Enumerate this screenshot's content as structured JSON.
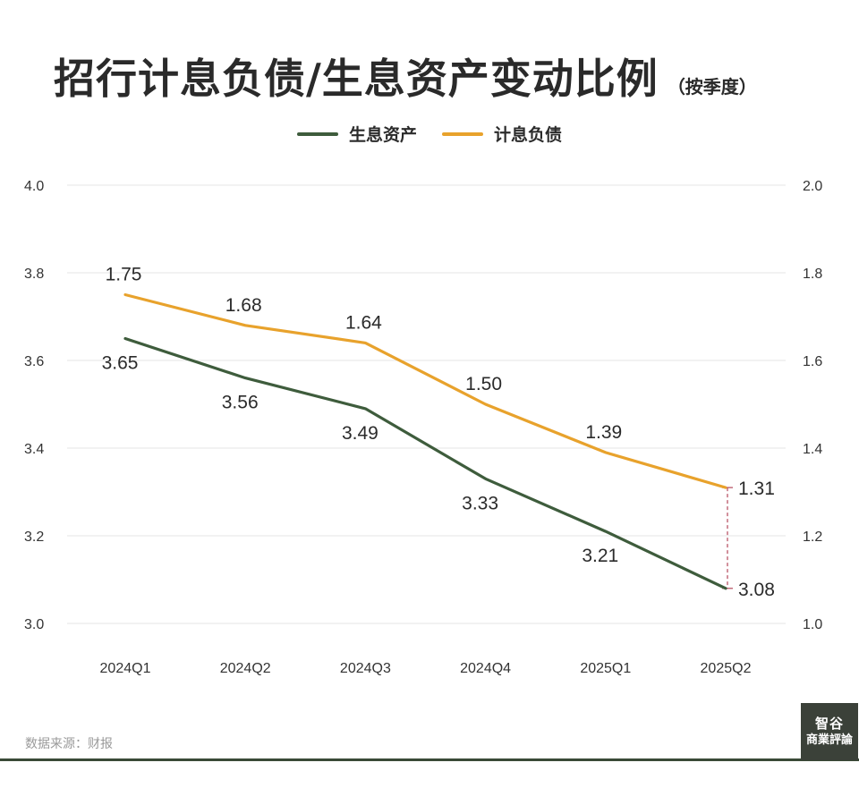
{
  "header": {
    "title": "招行计息负债/生息资产变动比例",
    "subtitle": "（按季度）"
  },
  "source": "数据来源：财报",
  "logo_text": [
    "智谷",
    "商業評論"
  ],
  "colors": {
    "interest_earning_assets": "#3e5c3c",
    "interest_bearing_liabilities": "#e8a22c",
    "grid": "#e6e6e6",
    "gap_marker": "#b3475a"
  },
  "chart_data": {
    "type": "line",
    "categories": [
      "2024Q1",
      "2024Q2",
      "2024Q3",
      "2024Q4",
      "2025Q1",
      "2025Q2"
    ],
    "series": [
      {
        "name": "生息资产",
        "axis": "left",
        "values": [
          3.65,
          3.56,
          3.49,
          3.33,
          3.21,
          3.08
        ],
        "labels": [
          "3.65",
          "3.56",
          "3.49",
          "3.33",
          "3.21",
          "3.08"
        ]
      },
      {
        "name": "计息负债",
        "axis": "right",
        "values": [
          1.75,
          1.68,
          1.64,
          1.5,
          1.39,
          1.31
        ],
        "labels": [
          "1.75",
          "1.68",
          "1.64",
          "1.50",
          "1.39",
          "1.31"
        ]
      }
    ],
    "left_axis": {
      "ylim": [
        3.0,
        4.0
      ],
      "ticks": [
        "3.0",
        "3.2",
        "3.4",
        "3.6",
        "3.8",
        "4.0"
      ]
    },
    "right_axis": {
      "ylim": [
        1.0,
        2.0
      ],
      "ticks": [
        "1.0",
        "1.2",
        "1.4",
        "1.6",
        "1.8",
        "2.0"
      ]
    },
    "grid": true,
    "legend": "top-center"
  }
}
